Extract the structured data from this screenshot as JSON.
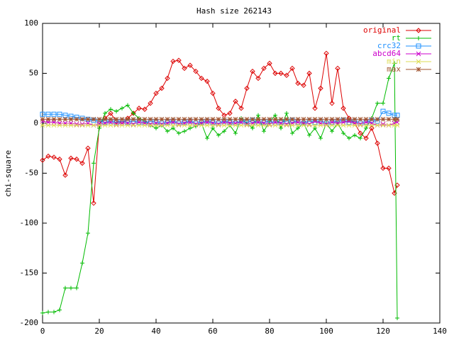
{
  "chart_data": {
    "type": "line",
    "title": "Hash size 262143",
    "y_label": "chi-square",
    "x": [
      0,
      2,
      4,
      6,
      8,
      10,
      12,
      14,
      16,
      18,
      20,
      22,
      24,
      26,
      28,
      30,
      32,
      34,
      36,
      38,
      40,
      42,
      44,
      46,
      48,
      50,
      52,
      54,
      56,
      58,
      60,
      62,
      64,
      66,
      68,
      70,
      72,
      74,
      76,
      78,
      80,
      82,
      84,
      86,
      88,
      90,
      92,
      94,
      96,
      98,
      100,
      102,
      104,
      106,
      108,
      110,
      112,
      114,
      116,
      118,
      120,
      122,
      124,
      125
    ],
    "series": [
      {
        "name": "original",
        "color": "#dd0000",
        "values": [
          -37,
          -33,
          -34,
          -36,
          -52,
          -35,
          -36,
          -40,
          -25,
          -80,
          0,
          5,
          10,
          2,
          0,
          5,
          10,
          15,
          14,
          20,
          30,
          35,
          45,
          62,
          63,
          55,
          58,
          52,
          45,
          42,
          30,
          15,
          8,
          10,
          22,
          15,
          35,
          52,
          45,
          55,
          60,
          50,
          50,
          48,
          55,
          40,
          38,
          50,
          15,
          35,
          70,
          20,
          55,
          15,
          5,
          0,
          -10,
          -15,
          -5,
          -20,
          -45,
          -45,
          -70,
          -62
        ]
      },
      {
        "name": "rt",
        "color": "#00bb00",
        "values": [
          -190,
          -189,
          -189,
          -187,
          -165,
          -165,
          -165,
          -140,
          -110,
          -40,
          -5,
          10,
          14,
          12,
          15,
          18,
          10,
          5,
          2,
          -2,
          -5,
          -2,
          -8,
          -5,
          -10,
          -8,
          -5,
          -3,
          0,
          -15,
          -5,
          -12,
          -8,
          -2,
          -10,
          5,
          0,
          -5,
          8,
          -8,
          2,
          8,
          -5,
          10,
          -10,
          -5,
          0,
          -12,
          -5,
          -15,
          0,
          -8,
          0,
          -10,
          -15,
          -12,
          -15,
          -5,
          5,
          20,
          20,
          45,
          60,
          -195
        ]
      },
      {
        "name": "crc32",
        "color": "#1e90ff",
        "values": [
          9,
          9,
          9,
          9,
          8,
          7,
          6,
          5,
          4,
          3,
          2,
          1,
          2,
          1,
          2,
          1,
          2,
          1,
          0,
          2,
          1,
          0,
          1,
          2,
          0,
          1,
          2,
          0,
          1,
          2,
          1,
          0,
          2,
          1,
          0,
          2,
          1,
          3,
          0,
          1,
          2,
          0,
          1,
          2,
          3,
          1,
          0,
          2,
          1,
          2,
          0,
          1,
          2,
          3,
          1,
          2,
          0,
          1,
          3,
          2,
          12,
          10,
          8,
          8
        ]
      },
      {
        "name": "abcd64",
        "color": "#cc00cc",
        "values": [
          2,
          1,
          1,
          0,
          0,
          0,
          -1,
          -1,
          0,
          -2,
          -1,
          0,
          1,
          -1,
          0,
          0,
          -1,
          1,
          0,
          -1,
          0,
          -1,
          0,
          1,
          -1,
          0,
          1,
          -1,
          0,
          1,
          0,
          -1,
          1,
          0,
          0,
          1,
          -1,
          0,
          1,
          0,
          -1,
          1,
          0,
          -1,
          0,
          1,
          0,
          -1,
          2,
          0,
          -1,
          1,
          0,
          1,
          2,
          0,
          -1,
          1,
          0,
          -2,
          -1,
          -2,
          0,
          1
        ]
      },
      {
        "name": "min",
        "color": "#dddd55",
        "values": [
          -2,
          -2,
          -2,
          -2,
          -2,
          -2,
          -2,
          -2,
          -2,
          -2,
          -2,
          -2,
          -2,
          -2,
          -2,
          -2,
          -2,
          -2,
          -2,
          -2,
          -2,
          -2,
          -2,
          -2,
          -2,
          -2,
          -2,
          -2,
          -2,
          -2,
          -2,
          -2,
          -2,
          -2,
          -2,
          -2,
          -2,
          -2,
          -2,
          -2,
          -2,
          -2,
          -2,
          -2,
          -2,
          -2,
          -2,
          -2,
          -2,
          -2,
          -2,
          -2,
          -2,
          -2,
          -2,
          -2,
          -2,
          -2,
          -2,
          -2,
          -2,
          -2,
          -2,
          -2
        ]
      },
      {
        "name": "max",
        "color": "#a0522d",
        "values": [
          4,
          4,
          4,
          4,
          4,
          4,
          4,
          4,
          4,
          4,
          4,
          4,
          4,
          4,
          4,
          4,
          4,
          4,
          4,
          4,
          4,
          4,
          4,
          4,
          4,
          4,
          4,
          4,
          4,
          4,
          4,
          4,
          4,
          4,
          4,
          4,
          4,
          4,
          4,
          4,
          4,
          4,
          4,
          4,
          4,
          4,
          4,
          4,
          4,
          4,
          4,
          4,
          4,
          4,
          4,
          4,
          4,
          4,
          4,
          4,
          4,
          4,
          4,
          4
        ]
      }
    ],
    "xlim": [
      0,
      140
    ],
    "xticks": [
      0,
      20,
      40,
      60,
      80,
      100,
      120,
      140
    ],
    "ylim": [
      -200,
      100
    ],
    "yticks": [
      -200,
      -150,
      -100,
      -50,
      0,
      50,
      100
    ]
  }
}
